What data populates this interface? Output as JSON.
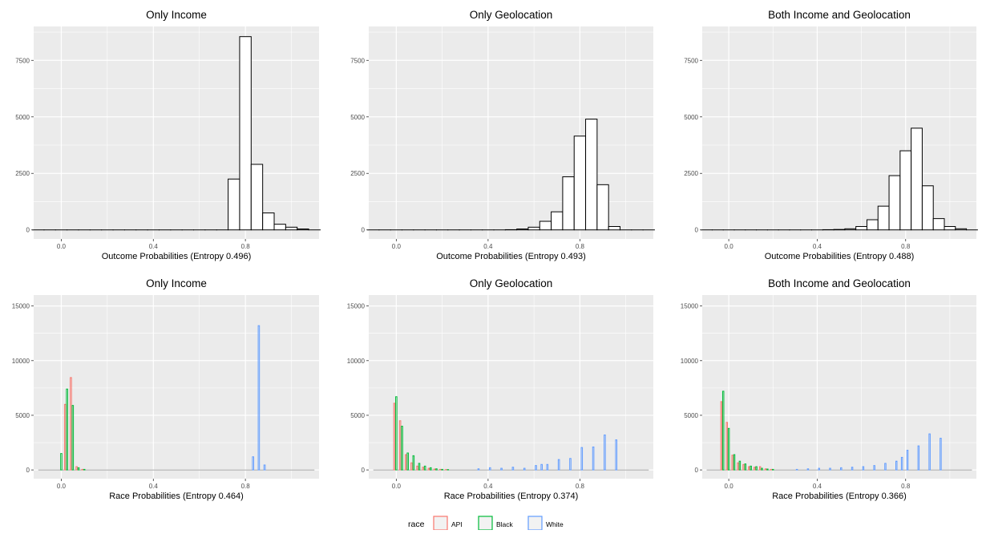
{
  "legend": {
    "title": "race",
    "items": [
      {
        "label": "API",
        "color": "#F8766D"
      },
      {
        "label": "Black",
        "color": "#00BA38"
      },
      {
        "label": "White",
        "color": "#619CFF"
      }
    ]
  },
  "chart_data": [
    {
      "type": "histogram",
      "title": "Only Income",
      "xlabel": "Outcome Probabilities (Entropy 0.496)",
      "ylabel": "",
      "xlim": [
        -0.12,
        1.12
      ],
      "ylim": [
        -400,
        9000
      ],
      "x_ticks": [
        0.0,
        0.4,
        0.8
      ],
      "x_tick_labels": [
        "0.0",
        "0.4",
        "0.8"
      ],
      "y_ticks": [
        0,
        2500,
        5000,
        7500
      ],
      "y_tick_labels": [
        "0",
        "2500",
        "5000",
        "7500"
      ],
      "grid": true,
      "bin_width": 0.05,
      "bins": [
        {
          "x": -0.1,
          "count": 0
        },
        {
          "x": -0.05,
          "count": 0
        },
        {
          "x": 0.0,
          "count": 0
        },
        {
          "x": 0.05,
          "count": 0
        },
        {
          "x": 0.1,
          "count": 0
        },
        {
          "x": 0.15,
          "count": 0
        },
        {
          "x": 0.2,
          "count": 0
        },
        {
          "x": 0.25,
          "count": 0
        },
        {
          "x": 0.3,
          "count": 0
        },
        {
          "x": 0.35,
          "count": 0
        },
        {
          "x": 0.4,
          "count": 0
        },
        {
          "x": 0.45,
          "count": 0
        },
        {
          "x": 0.5,
          "count": 0
        },
        {
          "x": 0.55,
          "count": 0
        },
        {
          "x": 0.6,
          "count": 0
        },
        {
          "x": 0.65,
          "count": 0
        },
        {
          "x": 0.7,
          "count": 0
        },
        {
          "x": 0.75,
          "count": 2250
        },
        {
          "x": 0.8,
          "count": 8550
        },
        {
          "x": 0.85,
          "count": 2900
        },
        {
          "x": 0.9,
          "count": 750
        },
        {
          "x": 0.95,
          "count": 250
        },
        {
          "x": 1.0,
          "count": 120
        },
        {
          "x": 1.05,
          "count": 40
        },
        {
          "x": 1.1,
          "count": 0
        }
      ]
    },
    {
      "type": "histogram",
      "title": "Only Geolocation",
      "xlabel": "Outcome Probabilities (Entropy 0.493)",
      "ylabel": "",
      "xlim": [
        -0.12,
        1.12
      ],
      "ylim": [
        -400,
        9000
      ],
      "x_ticks": [
        0.0,
        0.4,
        0.8
      ],
      "x_tick_labels": [
        "0.0",
        "0.4",
        "0.8"
      ],
      "y_ticks": [
        0,
        2500,
        5000,
        7500
      ],
      "y_tick_labels": [
        "0",
        "2500",
        "5000",
        "7500"
      ],
      "grid": true,
      "bin_width": 0.05,
      "bins": [
        {
          "x": -0.1,
          "count": 0
        },
        {
          "x": -0.05,
          "count": 0
        },
        {
          "x": 0.0,
          "count": 0
        },
        {
          "x": 0.05,
          "count": 0
        },
        {
          "x": 0.1,
          "count": 0
        },
        {
          "x": 0.15,
          "count": 0
        },
        {
          "x": 0.2,
          "count": 0
        },
        {
          "x": 0.25,
          "count": 0
        },
        {
          "x": 0.3,
          "count": 0
        },
        {
          "x": 0.35,
          "count": 0
        },
        {
          "x": 0.4,
          "count": 0
        },
        {
          "x": 0.45,
          "count": 0
        },
        {
          "x": 0.5,
          "count": 10
        },
        {
          "x": 0.55,
          "count": 40
        },
        {
          "x": 0.6,
          "count": 120
        },
        {
          "x": 0.65,
          "count": 380
        },
        {
          "x": 0.7,
          "count": 800
        },
        {
          "x": 0.75,
          "count": 2350
        },
        {
          "x": 0.8,
          "count": 4150
        },
        {
          "x": 0.85,
          "count": 4900
        },
        {
          "x": 0.9,
          "count": 2000
        },
        {
          "x": 0.95,
          "count": 150
        },
        {
          "x": 1.0,
          "count": 0
        },
        {
          "x": 1.05,
          "count": 0
        },
        {
          "x": 1.1,
          "count": 0
        }
      ]
    },
    {
      "type": "histogram",
      "title": "Both Income and Geolocation",
      "xlabel": "Outcome Probabilities (Entropy 0.488)",
      "ylabel": "",
      "xlim": [
        -0.12,
        1.12
      ],
      "ylim": [
        -400,
        9000
      ],
      "x_ticks": [
        0.0,
        0.4,
        0.8
      ],
      "x_tick_labels": [
        "0.0",
        "0.4",
        "0.8"
      ],
      "y_ticks": [
        0,
        2500,
        5000,
        7500
      ],
      "y_tick_labels": [
        "0",
        "2500",
        "5000",
        "7500"
      ],
      "grid": true,
      "bin_width": 0.05,
      "bins": [
        {
          "x": -0.1,
          "count": 0
        },
        {
          "x": -0.05,
          "count": 0
        },
        {
          "x": 0.0,
          "count": 0
        },
        {
          "x": 0.05,
          "count": 0
        },
        {
          "x": 0.1,
          "count": 0
        },
        {
          "x": 0.15,
          "count": 0
        },
        {
          "x": 0.2,
          "count": 0
        },
        {
          "x": 0.25,
          "count": 0
        },
        {
          "x": 0.3,
          "count": 0
        },
        {
          "x": 0.35,
          "count": 0
        },
        {
          "x": 0.4,
          "count": 0
        },
        {
          "x": 0.45,
          "count": 10
        },
        {
          "x": 0.5,
          "count": 20
        },
        {
          "x": 0.55,
          "count": 50
        },
        {
          "x": 0.6,
          "count": 150
        },
        {
          "x": 0.65,
          "count": 450
        },
        {
          "x": 0.7,
          "count": 1050
        },
        {
          "x": 0.75,
          "count": 2400
        },
        {
          "x": 0.8,
          "count": 3500
        },
        {
          "x": 0.85,
          "count": 4500
        },
        {
          "x": 0.9,
          "count": 1950
        },
        {
          "x": 0.95,
          "count": 500
        },
        {
          "x": 1.0,
          "count": 150
        },
        {
          "x": 1.05,
          "count": 50
        },
        {
          "x": 1.1,
          "count": 0
        }
      ]
    },
    {
      "type": "histogram",
      "title": "Only Income",
      "xlabel": "Race Probabilities (Entropy 0.464)",
      "ylabel": "",
      "xlim": [
        -0.12,
        1.12
      ],
      "ylim": [
        -800,
        16000
      ],
      "x_ticks": [
        0.0,
        0.4,
        0.8
      ],
      "x_tick_labels": [
        "0.0",
        "0.4",
        "0.8"
      ],
      "y_ticks": [
        0,
        5000,
        10000,
        15000
      ],
      "y_tick_labels": [
        "0",
        "5000",
        "10000",
        "15000"
      ],
      "grid": true,
      "bin_width": 0.025,
      "series": [
        {
          "name": "API",
          "color": "#F8766D",
          "bins": [
            [
              0.025,
              6000
            ],
            [
              0.05,
              8450
            ],
            [
              0.075,
              300
            ],
            [
              0.1,
              50
            ]
          ]
        },
        {
          "name": "Black",
          "color": "#00BA38",
          "bins": [
            [
              0.0,
              1500
            ],
            [
              0.025,
              7400
            ],
            [
              0.05,
              5900
            ],
            [
              0.075,
              200
            ],
            [
              0.1,
              50
            ]
          ]
        },
        {
          "name": "White",
          "color": "#619CFF",
          "bins": [
            [
              0.825,
              1200
            ],
            [
              0.85,
              13200
            ],
            [
              0.875,
              450
            ]
          ]
        }
      ]
    },
    {
      "type": "histogram",
      "title": "Only Geolocation",
      "xlabel": "Race Probabilities (Entropy 0.374)",
      "ylabel": "",
      "xlim": [
        -0.12,
        1.12
      ],
      "ylim": [
        -800,
        16000
      ],
      "x_ticks": [
        0.0,
        0.4,
        0.8
      ],
      "x_tick_labels": [
        "0.0",
        "0.4",
        "0.8"
      ],
      "y_ticks": [
        0,
        5000,
        10000,
        15000
      ],
      "y_tick_labels": [
        "0",
        "5000",
        "10000",
        "15000"
      ],
      "grid": true,
      "bin_width": 0.025,
      "series": [
        {
          "name": "API",
          "color": "#F8766D",
          "bins": [
            [
              0.0,
              6100
            ],
            [
              0.025,
              4500
            ],
            [
              0.05,
              1400
            ],
            [
              0.075,
              650
            ],
            [
              0.1,
              350
            ],
            [
              0.125,
              250
            ],
            [
              0.15,
              150
            ],
            [
              0.175,
              80
            ],
            [
              0.2,
              50
            ],
            [
              0.225,
              30
            ]
          ]
        },
        {
          "name": "Black",
          "color": "#00BA38",
          "bins": [
            [
              0.0,
              6700
            ],
            [
              0.025,
              4000
            ],
            [
              0.05,
              1550
            ],
            [
              0.075,
              1300
            ],
            [
              0.1,
              600
            ],
            [
              0.125,
              350
            ],
            [
              0.15,
              200
            ],
            [
              0.175,
              100
            ],
            [
              0.2,
              50
            ],
            [
              0.225,
              30
            ]
          ]
        },
        {
          "name": "White",
          "color": "#619CFF",
          "bins": [
            [
              0.35,
              100
            ],
            [
              0.4,
              200
            ],
            [
              0.45,
              150
            ],
            [
              0.5,
              250
            ],
            [
              0.55,
              150
            ],
            [
              0.6,
              400
            ],
            [
              0.625,
              500
            ],
            [
              0.65,
              500
            ],
            [
              0.7,
              950
            ],
            [
              0.75,
              1050
            ],
            [
              0.8,
              2050
            ],
            [
              0.85,
              2100
            ],
            [
              0.9,
              3200
            ],
            [
              0.95,
              2750
            ]
          ]
        }
      ]
    },
    {
      "type": "histogram",
      "title": "Both Income and Geolocation",
      "xlabel": "Race Probabilities (Entropy 0.366)",
      "ylabel": "",
      "xlim": [
        -0.12,
        1.12
      ],
      "ylim": [
        -800,
        16000
      ],
      "x_ticks": [
        0.0,
        0.4,
        0.8
      ],
      "x_tick_labels": [
        "0.0",
        "0.4",
        "0.8"
      ],
      "y_ticks": [
        0,
        5000,
        10000,
        15000
      ],
      "y_tick_labels": [
        "0",
        "5000",
        "10000",
        "15000"
      ],
      "grid": true,
      "bin_width": 0.025,
      "series": [
        {
          "name": "API",
          "color": "#F8766D",
          "bins": [
            [
              -0.025,
              6250
            ],
            [
              0.0,
              4350
            ],
            [
              0.025,
              1350
            ],
            [
              0.05,
              650
            ],
            [
              0.075,
              500
            ],
            [
              0.1,
              300
            ],
            [
              0.125,
              250
            ],
            [
              0.15,
              300
            ],
            [
              0.175,
              100
            ],
            [
              0.2,
              50
            ]
          ]
        },
        {
          "name": "Black",
          "color": "#00BA38",
          "bins": [
            [
              -0.025,
              7200
            ],
            [
              0.0,
              3800
            ],
            [
              0.025,
              1400
            ],
            [
              0.05,
              800
            ],
            [
              0.075,
              550
            ],
            [
              0.1,
              350
            ],
            [
              0.125,
              300
            ],
            [
              0.15,
              150
            ],
            [
              0.175,
              80
            ],
            [
              0.2,
              50
            ]
          ]
        },
        {
          "name": "White",
          "color": "#619CFF",
          "bins": [
            [
              0.3,
              50
            ],
            [
              0.35,
              100
            ],
            [
              0.4,
              150
            ],
            [
              0.45,
              150
            ],
            [
              0.5,
              200
            ],
            [
              0.55,
              250
            ],
            [
              0.6,
              300
            ],
            [
              0.65,
              400
            ],
            [
              0.7,
              600
            ],
            [
              0.75,
              800
            ],
            [
              0.775,
              1150
            ],
            [
              0.8,
              1800
            ],
            [
              0.85,
              2200
            ],
            [
              0.9,
              3300
            ],
            [
              0.95,
              2900
            ]
          ]
        }
      ]
    }
  ]
}
